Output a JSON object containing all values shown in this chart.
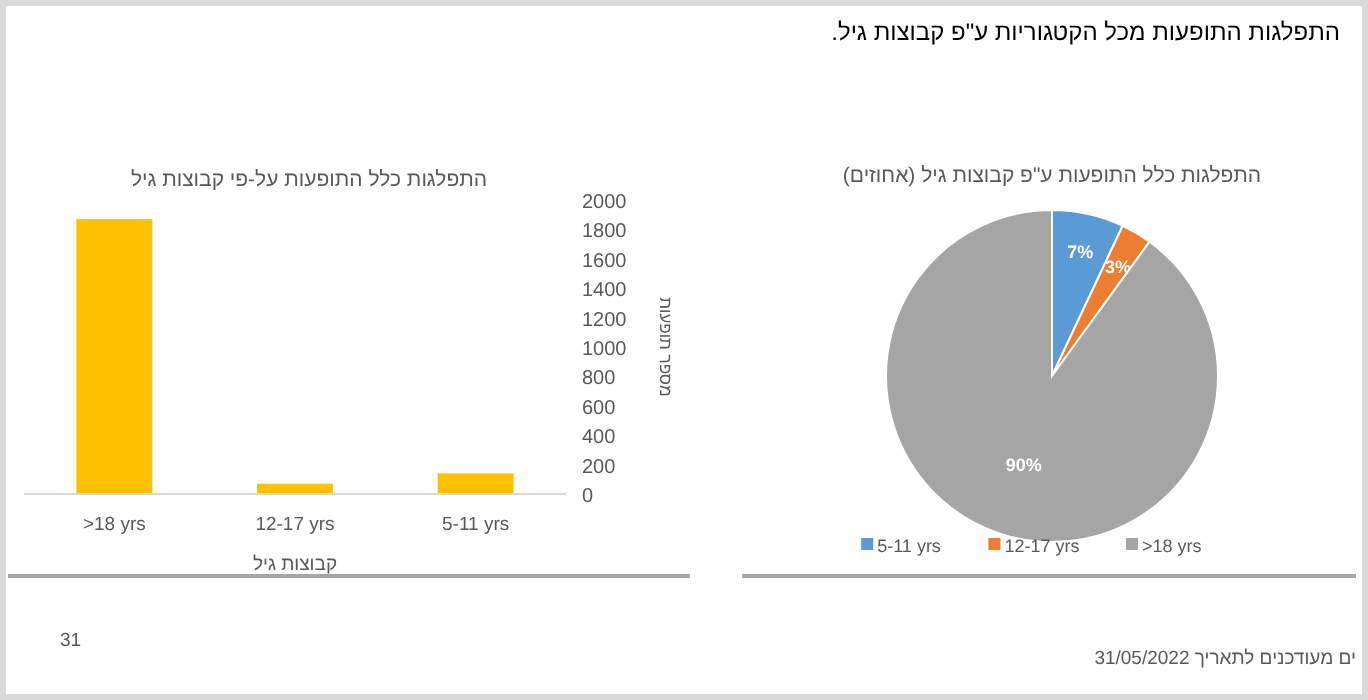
{
  "chart_data": [
    {
      "type": "bar",
      "title": "התפלגות כלל התופעות על-פי קבוצות גיל",
      "xlabel": "קבוצות גיל",
      "ylabel": "מספר תופעות",
      "categories": [
        ">18 yrs",
        "12-17 yrs",
        "5-11 yrs"
      ],
      "values": [
        1870,
        70,
        140
      ],
      "color": "#ffc000",
      "ylim": [
        0,
        2000
      ],
      "yticks": [
        0,
        200,
        400,
        600,
        800,
        1000,
        1200,
        1400,
        1600,
        1800,
        2000
      ],
      "annotations": [
        "התפלגות התופעות מכל הקטגוריות ע\"פ קבוצות גיל.",
        "31",
        "ים מעודכנים לתאריך 31/05/2022"
      ]
    },
    {
      "type": "pie",
      "title": "התפלגות כלל התופעות ע\"פ קבוצות גיל (אחוזים)",
      "categories": [
        "5-11 yrs",
        "12-17 yrs",
        ">18 yrs"
      ],
      "values": [
        7,
        3,
        90
      ],
      "colors": [
        "#5b9bd5",
        "#ed7d31",
        "#a5a5a5"
      ],
      "value_labels": [
        "7%",
        "3%",
        "90%"
      ],
      "legend": "bottom"
    }
  ]
}
